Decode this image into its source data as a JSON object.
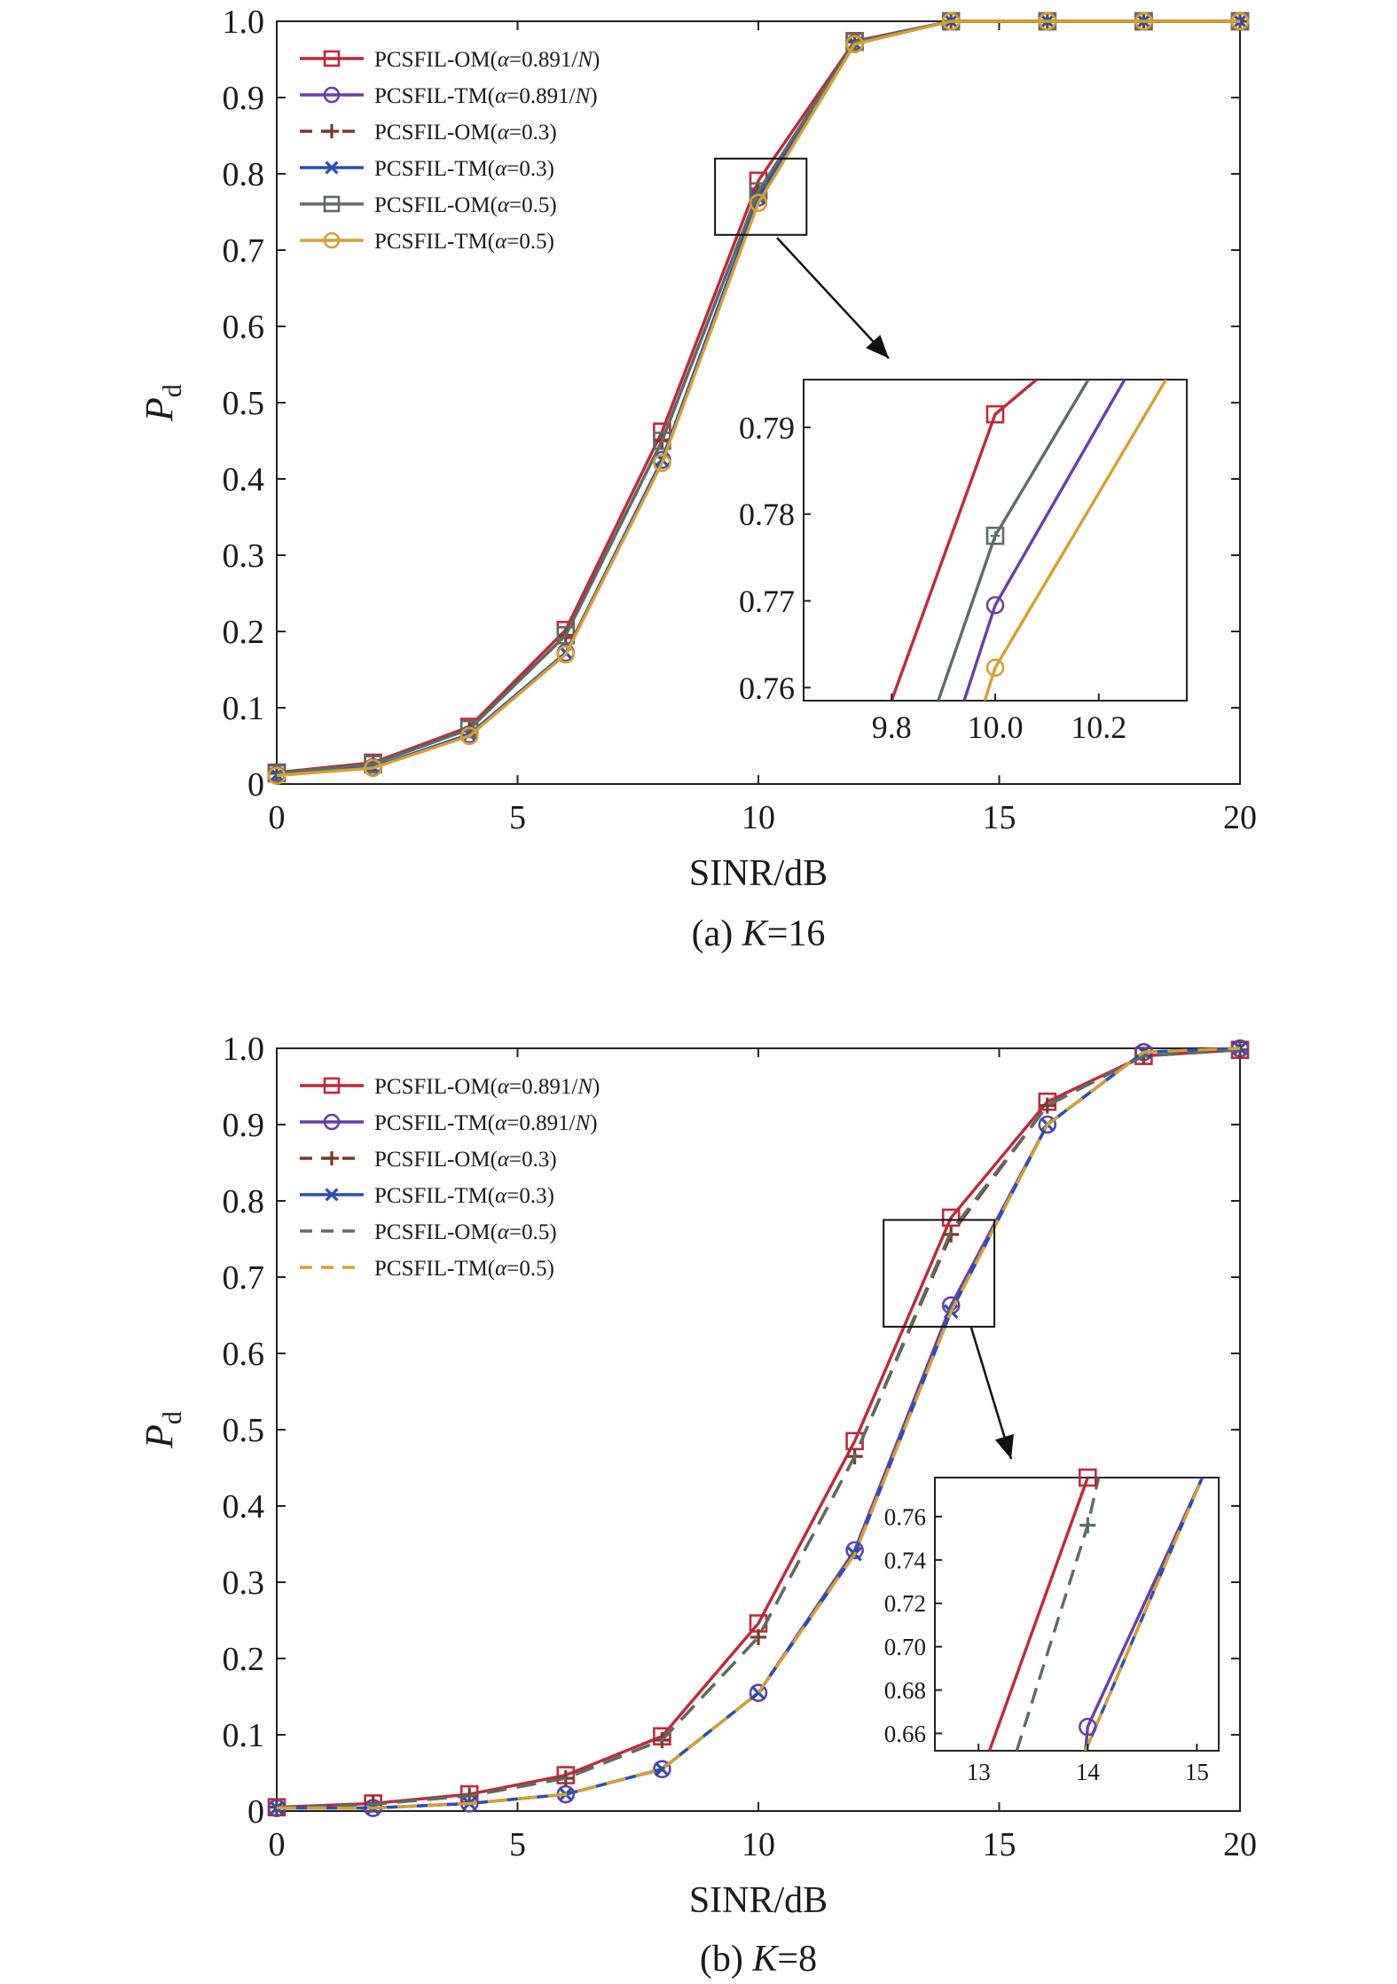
{
  "colors": {
    "red": "#c0293a",
    "purple": "#6a3fa8",
    "brown": "#7a3a2a",
    "blue": "#2a4fb0",
    "gray": "#5f6b63",
    "gold": "#d6a030"
  },
  "panels": [
    {
      "caption_prefix": "(a) ",
      "caption_var": "K",
      "caption_suffix": "=16",
      "xlabel": "SINR/dB",
      "ylabel_main": "P",
      "ylabel_sub": "d",
      "chart_data": {
        "type": "line",
        "xlim": [
          0,
          20
        ],
        "ylim": [
          0,
          1
        ],
        "xticks": [
          "0",
          "5",
          "10",
          "15",
          "20"
        ],
        "yticks": [
          "0",
          "0.1",
          "0.2",
          "0.3",
          "0.4",
          "0.5",
          "0.6",
          "0.7",
          "0.8",
          "0.9",
          "1.0"
        ],
        "x": [
          0,
          2,
          4,
          6,
          8,
          10,
          12,
          14,
          16,
          18,
          20
        ],
        "legend_position": "top-left",
        "series": [
          {
            "name": "PCSFIL-OM(α=0.891/N)",
            "color_key": "red",
            "dash": "solid",
            "marker": "square",
            "values": [
              0.015,
              0.028,
              0.075,
              0.202,
              0.462,
              0.791,
              0.974,
              1.0,
              1.0,
              1.0,
              1.0
            ]
          },
          {
            "name": "PCSFIL-TM(α=0.891/N)",
            "color_key": "purple",
            "dash": "solid",
            "marker": "circle",
            "values": [
              0.012,
              0.022,
              0.065,
              0.172,
              0.425,
              0.769,
              0.971,
              1.0,
              1.0,
              1.0,
              1.0
            ]
          },
          {
            "name": "PCSFIL-OM(α=0.3)",
            "color_key": "brown",
            "dash": "dashed",
            "marker": "plus",
            "values": [
              0.014,
              0.026,
              0.072,
              0.195,
              0.45,
              0.777,
              0.973,
              1.0,
              1.0,
              1.0,
              1.0
            ]
          },
          {
            "name": "PCSFIL-TM(α=0.3)",
            "color_key": "blue",
            "dash": "solid",
            "marker": "x",
            "values": [
              0.012,
              0.022,
              0.065,
              0.172,
              0.425,
              0.769,
              0.971,
              1.0,
              1.0,
              1.0,
              1.0
            ]
          },
          {
            "name": "PCSFIL-OM(α=0.5)",
            "color_key": "gray",
            "dash": "solid",
            "marker": "square",
            "values": [
              0.014,
              0.026,
              0.072,
              0.195,
              0.45,
              0.777,
              0.973,
              1.0,
              1.0,
              1.0,
              1.0
            ]
          },
          {
            "name": "PCSFIL-TM(α=0.5)",
            "color_key": "gold",
            "dash": "solid",
            "marker": "circle",
            "values": [
              0.011,
              0.021,
              0.063,
              0.17,
              0.421,
              0.762,
              0.97,
              1.0,
              1.0,
              1.0,
              1.0
            ]
          }
        ],
        "zoom_box": {
          "x": [
            9.1,
            11.0
          ],
          "y": [
            0.72,
            0.82
          ]
        },
        "inset": {
          "xlim": [
            9.63,
            10.37
          ],
          "ylim": [
            0.7585,
            0.7955
          ],
          "xticks": [
            "9.8",
            "10.0",
            "10.2"
          ],
          "yticks": [
            "0.76",
            "0.77",
            "0.78",
            "0.79"
          ],
          "lines": [
            {
              "color_key": "red",
              "points": [
                [
                  9.8,
                  0.7585
                ],
                [
                  10.0,
                  0.7915
                ],
                [
                  10.08,
                  0.7955
                ]
              ],
              "marker": "square",
              "marker_at": [
                10.0,
                0.7915
              ]
            },
            {
              "color_key": "gray",
              "points": [
                [
                  9.89,
                  0.7585
                ],
                [
                  10.0,
                  0.7775
                ],
                [
                  10.18,
                  0.7955
                ]
              ],
              "marker": "square-plus",
              "marker_at": [
                10.0,
                0.7775
              ]
            },
            {
              "color_key": "purple",
              "points": [
                [
                  9.94,
                  0.7585
                ],
                [
                  10.0,
                  0.7695
                ],
                [
                  10.25,
                  0.7955
                ]
              ],
              "marker": "circle",
              "marker_at": [
                10.0,
                0.7695
              ]
            },
            {
              "color_key": "gold",
              "points": [
                [
                  9.98,
                  0.7585
                ],
                [
                  10.0,
                  0.7623
                ],
                [
                  10.33,
                  0.7955
                ]
              ],
              "marker": "circle",
              "marker_at": [
                10.0,
                0.7623
              ]
            }
          ]
        }
      }
    },
    {
      "caption_prefix": "(b) ",
      "caption_var": "K",
      "caption_suffix": "=8",
      "xlabel": "SINR/dB",
      "ylabel_main": "P",
      "ylabel_sub": "d",
      "chart_data": {
        "type": "line",
        "xlim": [
          0,
          20
        ],
        "ylim": [
          0,
          1
        ],
        "xticks": [
          "0",
          "5",
          "10",
          "15",
          "20"
        ],
        "yticks": [
          "0",
          "0.1",
          "0.2",
          "0.3",
          "0.4",
          "0.5",
          "0.6",
          "0.7",
          "0.8",
          "0.9",
          "1.0"
        ],
        "x": [
          0,
          2,
          4,
          6,
          8,
          10,
          12,
          14,
          16,
          18,
          20
        ],
        "legend_position": "top-left",
        "series": [
          {
            "name": "PCSFIL-OM(α=0.891/N)",
            "color_key": "red",
            "dash": "solid",
            "marker": "square",
            "values": [
              0.005,
              0.01,
              0.022,
              0.047,
              0.098,
              0.246,
              0.485,
              0.778,
              0.93,
              0.99,
              0.998
            ]
          },
          {
            "name": "PCSFIL-TM(α=0.891/N)",
            "color_key": "purple",
            "dash": "solid",
            "marker": "circle",
            "values": [
              0.004,
              0.004,
              0.01,
              0.022,
              0.055,
              0.155,
              0.342,
              0.663,
              0.9,
              0.995,
              1.0
            ]
          },
          {
            "name": "PCSFIL-OM(α=0.3)",
            "color_key": "brown",
            "dash": "dashed",
            "marker": "plus",
            "values": [
              0.005,
              0.009,
              0.02,
              0.043,
              0.093,
              0.228,
              0.465,
              0.756,
              0.925,
              0.99,
              0.998
            ]
          },
          {
            "name": "PCSFIL-TM(α=0.3)",
            "color_key": "blue",
            "dash": "solid",
            "marker": "x",
            "values": [
              0.004,
              0.004,
              0.01,
              0.022,
              0.055,
              0.155,
              0.337,
              0.655,
              0.9,
              0.995,
              1.0
            ]
          },
          {
            "name": "PCSFIL-OM(α=0.5)",
            "color_key": "gray",
            "dash": "dashed",
            "marker": "none",
            "values": [
              0.005,
              0.009,
              0.02,
              0.043,
              0.093,
              0.228,
              0.465,
              0.76,
              0.925,
              0.99,
              0.998
            ]
          },
          {
            "name": "PCSFIL-TM(α=0.5)",
            "color_key": "gold",
            "dash": "dashed",
            "marker": "none",
            "values": [
              0.004,
              0.004,
              0.01,
              0.022,
              0.055,
              0.155,
              0.337,
              0.655,
              0.9,
              0.995,
              1.0
            ]
          }
        ],
        "zoom_box": {
          "x": [
            12.6,
            14.9
          ],
          "y": [
            0.635,
            0.775
          ]
        },
        "inset": {
          "xlim": [
            12.6,
            15.2
          ],
          "ylim": [
            0.652,
            0.778
          ],
          "xticks": [
            "13",
            "14",
            "15"
          ],
          "yticks": [
            "0.66",
            "0.68",
            "0.70",
            "0.72",
            "0.74",
            "0.76"
          ],
          "lines": [
            {
              "color_key": "red",
              "points": [
                [
                  13.1,
                  0.652
                ],
                [
                  14.0,
                  0.778
                ]
              ],
              "marker": "square",
              "marker_at": [
                14.0,
                0.778
              ]
            },
            {
              "color_key": "gray",
              "dash": "dashed",
              "points": [
                [
                  13.35,
                  0.652
                ],
                [
                  14.0,
                  0.756
                ],
                [
                  14.1,
                  0.778
                ]
              ],
              "marker": "plus",
              "marker_at": [
                14.0,
                0.756
              ]
            },
            {
              "color_key": "purple",
              "points": [
                [
                  13.98,
                  0.652
                ],
                [
                  14.0,
                  0.663
                ],
                [
                  15.05,
                  0.778
                ]
              ],
              "marker": "circle",
              "marker_at": [
                14.0,
                0.663
              ]
            },
            {
              "color_key": "blue",
              "points": [
                [
                  13.98,
                  0.652
                ],
                [
                  15.05,
                  0.778
                ]
              ],
              "marker": "none"
            },
            {
              "color_key": "gold",
              "dash": "dashed",
              "points": [
                [
                  13.98,
                  0.652
                ],
                [
                  15.05,
                  0.778
                ]
              ],
              "marker": "none"
            }
          ]
        }
      }
    }
  ]
}
